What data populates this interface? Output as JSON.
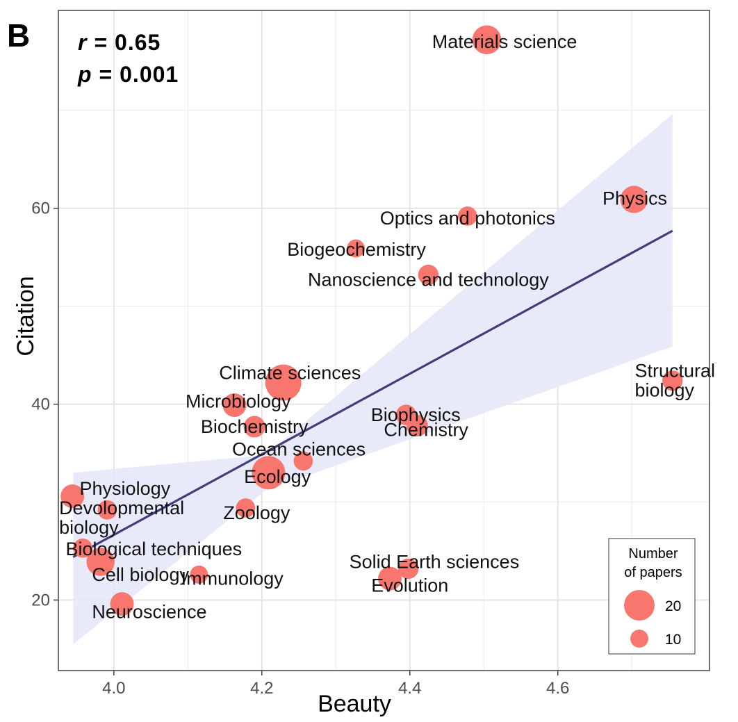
{
  "chart_data": {
    "type": "scatter",
    "panel_label": "B",
    "xlabel": "Beauty",
    "ylabel": "Citation",
    "xlim": [
      3.925,
      4.805
    ],
    "ylim": [
      12.8,
      80.2
    ],
    "xticks": [
      4.0,
      4.2,
      4.4,
      4.6
    ],
    "xtick_labels": [
      "4.0",
      "4.2",
      "4.4",
      "4.6"
    ],
    "yticks": [
      20,
      40,
      60
    ],
    "ytick_labels": [
      "20",
      "40",
      "60"
    ],
    "grid": true,
    "stats": {
      "r_symbol": "r",
      "r_value": "= 0.65",
      "p_symbol": "p",
      "p_value": "= 0.001"
    },
    "regression": {
      "x": [
        3.945,
        4.755
      ],
      "y": [
        24.4,
        57.7
      ],
      "ci_band": {
        "x": [
          3.945,
          4.205,
          4.755
        ],
        "upper": [
          33.0,
          34.8,
          69.6
        ],
        "lower": [
          15.5,
          31.2,
          45.9
        ]
      }
    },
    "legend": {
      "title_line1": "Number",
      "title_line2": "of papers",
      "entries": [
        {
          "label": "20",
          "size": 20
        },
        {
          "label": "10",
          "size": 10
        }
      ],
      "placement": "bottom-right"
    },
    "colors": {
      "points": "#f8766d",
      "line": "#3f3d7c",
      "band": "#e4e6f8",
      "grid": "#ebebeb",
      "frame": "#333333"
    },
    "points": [
      {
        "name": "Materials science",
        "x": 4.504,
        "y": 77.2,
        "n": 18
      },
      {
        "name": "Physics",
        "x": 4.703,
        "y": 60.9,
        "n": 16
      },
      {
        "name": "Optics and photonics",
        "x": 4.478,
        "y": 59.2,
        "n": 8
      },
      {
        "name": "Biogeochemistry",
        "x": 4.327,
        "y": 55.9,
        "n": 7
      },
      {
        "name": "Nanoscience and technology",
        "x": 4.425,
        "y": 53.2,
        "n": 9
      },
      {
        "name": "Climate sciences",
        "x": 4.229,
        "y": 42.2,
        "n": 28
      },
      {
        "name": "Structural biology",
        "x": 4.755,
        "y": 42.4,
        "n": 9
      },
      {
        "name": "Microbiology",
        "x": 4.163,
        "y": 39.9,
        "n": 12
      },
      {
        "name": "Biophysics",
        "x": 4.395,
        "y": 38.9,
        "n": 9
      },
      {
        "name": "Chemistry",
        "x": 4.41,
        "y": 37.8,
        "n": 10
      },
      {
        "name": "Biochemistry",
        "x": 4.19,
        "y": 37.7,
        "n": 10
      },
      {
        "name": "Ocean sciences",
        "x": 4.256,
        "y": 34.2,
        "n": 8
      },
      {
        "name": "Ecology",
        "x": 4.209,
        "y": 33.0,
        "n": 24
      },
      {
        "name": "Physiology",
        "x": 3.944,
        "y": 30.6,
        "n": 12
      },
      {
        "name": "Devolopmental biology",
        "x": 3.991,
        "y": 29.2,
        "n": 8
      },
      {
        "name": "Zoology",
        "x": 4.178,
        "y": 29.4,
        "n": 8
      },
      {
        "name": "Biological techniques",
        "x": 3.958,
        "y": 25.3,
        "n": 8
      },
      {
        "name": "Cell biology",
        "x": 3.982,
        "y": 23.9,
        "n": 17
      },
      {
        "name": "Immunology",
        "x": 4.115,
        "y": 22.6,
        "n": 7
      },
      {
        "name": "Solid Earth sciences",
        "x": 4.398,
        "y": 23.2,
        "n": 9
      },
      {
        "name": "Evolution",
        "x": 4.373,
        "y": 22.2,
        "n": 12
      },
      {
        "name": "Neuroscience",
        "x": 4.011,
        "y": 19.6,
        "n": 12
      }
    ],
    "label_layout": [
      {
        "lines": [
          "Materials science"
        ],
        "x": 4.528,
        "y": 77.0,
        "anchor": "middle"
      },
      {
        "lines": [
          "Physics"
        ],
        "x": 4.704,
        "y": 61.0,
        "anchor": "middle"
      },
      {
        "lines": [
          "Optics and photonics"
        ],
        "x": 4.478,
        "y": 59.0,
        "anchor": "middle"
      },
      {
        "lines": [
          "Biogeochemistry"
        ],
        "x": 4.328,
        "y": 55.8,
        "anchor": "middle"
      },
      {
        "lines": [
          "Nanoscience and technology"
        ],
        "x": 4.425,
        "y": 52.7,
        "anchor": "middle"
      },
      {
        "lines": [
          "Climate sciences"
        ],
        "x": 4.238,
        "y": 43.2,
        "anchor": "middle"
      },
      {
        "lines": [
          "Structural",
          "biology"
        ],
        "x": 4.704,
        "y": 43.4,
        "anchor": "start"
      },
      {
        "lines": [
          "Microbiology"
        ],
        "x": 4.168,
        "y": 40.3,
        "anchor": "middle"
      },
      {
        "lines": [
          "Biophysics"
        ],
        "x": 4.408,
        "y": 38.9,
        "anchor": "middle"
      },
      {
        "lines": [
          "Chemistry"
        ],
        "x": 4.422,
        "y": 37.4,
        "anchor": "middle"
      },
      {
        "lines": [
          "Biochemistry"
        ],
        "x": 4.19,
        "y": 37.7,
        "anchor": "middle"
      },
      {
        "lines": [
          "Ocean sciences"
        ],
        "x": 4.25,
        "y": 35.4,
        "anchor": "middle"
      },
      {
        "lines": [
          "Ecology"
        ],
        "x": 4.221,
        "y": 32.6,
        "anchor": "middle"
      },
      {
        "lines": [
          "Physiology"
        ],
        "x": 4.015,
        "y": 31.4,
        "anchor": "middle"
      },
      {
        "lines": [
          "Devolopmental",
          "biology"
        ],
        "x": 3.926,
        "y": 29.4,
        "anchor": "start"
      },
      {
        "lines": [
          "Zoology"
        ],
        "x": 4.193,
        "y": 28.9,
        "anchor": "middle"
      },
      {
        "lines": [
          "Biological techniques"
        ],
        "x": 4.054,
        "y": 25.2,
        "anchor": "middle"
      },
      {
        "lines": [
          "Cell biology"
        ],
        "x": 4.036,
        "y": 22.6,
        "anchor": "middle"
      },
      {
        "lines": [
          "Immunology"
        ],
        "x": 4.16,
        "y": 22.2,
        "anchor": "middle"
      },
      {
        "lines": [
          "Solid Earth sciences"
        ],
        "x": 4.433,
        "y": 23.9,
        "anchor": "middle"
      },
      {
        "lines": [
          "Evolution"
        ],
        "x": 4.4,
        "y": 21.5,
        "anchor": "middle"
      },
      {
        "lines": [
          "Neuroscience"
        ],
        "x": 4.048,
        "y": 18.8,
        "anchor": "middle"
      }
    ]
  }
}
